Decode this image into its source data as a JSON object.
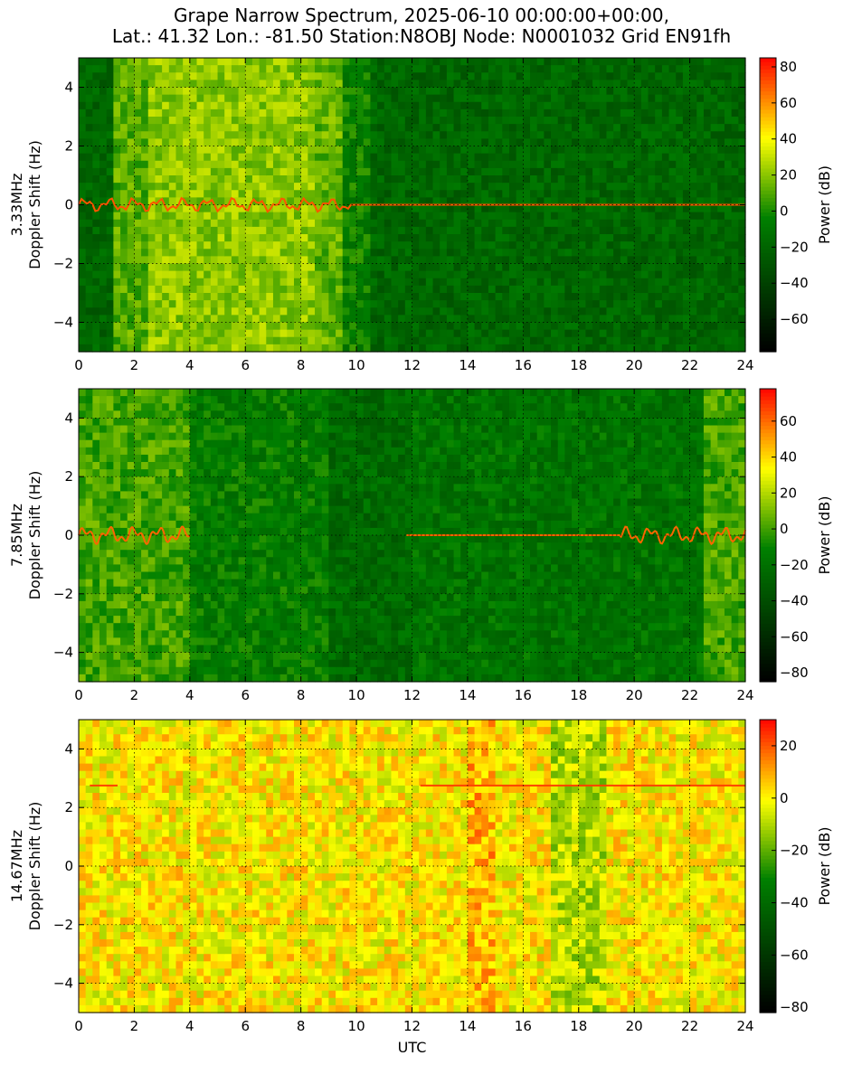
{
  "title": {
    "line1": "Grape Narrow Spectrum, 2025-06-10 00:00:00+00:00,",
    "line2": "Lat.: 41.32 Lon.: -81.50 Station:N8OBJ Node: N0001032 Grid EN91fh"
  },
  "colors": {
    "low": "#000000",
    "mid_low": "#008000",
    "mid": "#ffff00",
    "high": "#ff0000"
  },
  "chart_data": [
    {
      "type": "heatmap",
      "ylabel_line1": "3.33MHz",
      "ylabel_line2": "Doppler Shift (Hz)",
      "xlabel": "",
      "xlim": [
        0,
        24
      ],
      "ylim": [
        -5,
        5
      ],
      "xticks": [
        0,
        2,
        4,
        6,
        8,
        10,
        12,
        14,
        16,
        18,
        20,
        22,
        24
      ],
      "yticks": [
        -4,
        -2,
        0,
        2,
        4
      ],
      "grid": true,
      "colorbar": {
        "label": "Power (dB)",
        "ticks": [
          -60,
          -40,
          -20,
          0,
          20,
          40,
          60,
          80
        ],
        "range": [
          -78,
          85
        ]
      },
      "background": [
        [
          0,
          1.2,
          -20
        ],
        [
          1.2,
          2.5,
          10
        ],
        [
          2.5,
          8.5,
          20
        ],
        [
          8.5,
          9.5,
          12
        ],
        [
          9.5,
          10.5,
          -5
        ],
        [
          10.5,
          24,
          -20
        ]
      ],
      "trace": {
        "start": 0,
        "end": 24,
        "level": 70,
        "wiggle_until": 9.8,
        "amp": 0.25
      }
    },
    {
      "type": "heatmap",
      "ylabel_line1": "7.85MHz",
      "ylabel_line2": "Doppler Shift (Hz)",
      "xlabel": "",
      "xlim": [
        0,
        24
      ],
      "ylim": [
        -5,
        5
      ],
      "xticks": [
        0,
        2,
        4,
        6,
        8,
        10,
        12,
        14,
        16,
        18,
        20,
        22,
        24
      ],
      "yticks": [
        -4,
        -2,
        0,
        2,
        4
      ],
      "grid": true,
      "colorbar": {
        "label": "Power (dB)",
        "ticks": [
          -80,
          -60,
          -40,
          -20,
          0,
          20,
          40,
          60
        ],
        "range": [
          -85,
          78
        ]
      },
      "background": [
        [
          0,
          4,
          0
        ],
        [
          4,
          9,
          -15
        ],
        [
          9,
          12,
          -25
        ],
        [
          12,
          22.5,
          -20
        ],
        [
          22.5,
          24,
          0
        ]
      ],
      "trace": {
        "start": 0,
        "end": 4,
        "level": 60,
        "wiggle_until": 4,
        "amp": 0.3,
        "start2": 11.8,
        "end2": 24,
        "wiggle_from2": 19.5
      }
    },
    {
      "type": "heatmap",
      "ylabel_line1": "14.67MHz",
      "ylabel_line2": "Doppler Shift (Hz)",
      "xlabel": "UTC",
      "xlim": [
        0,
        24
      ],
      "ylim": [
        -5,
        5
      ],
      "xticks": [
        0,
        2,
        4,
        6,
        8,
        10,
        12,
        14,
        16,
        18,
        20,
        22,
        24
      ],
      "yticks": [
        -4,
        -2,
        0,
        2,
        4
      ],
      "grid": true,
      "colorbar": {
        "label": "Power (dB)",
        "ticks": [
          -80,
          -60,
          -40,
          -20,
          0,
          20
        ],
        "range": [
          -82,
          30
        ]
      },
      "background": [
        [
          0,
          14,
          0
        ],
        [
          14,
          15,
          8
        ],
        [
          15,
          17,
          0
        ],
        [
          17,
          19,
          -10
        ],
        [
          19,
          24,
          0
        ]
      ],
      "trace": {
        "start": 0.4,
        "end": 1.4,
        "level": 22,
        "y": 2.75,
        "start2": 12.3,
        "end2": 24,
        "y2": 2.75
      }
    }
  ]
}
